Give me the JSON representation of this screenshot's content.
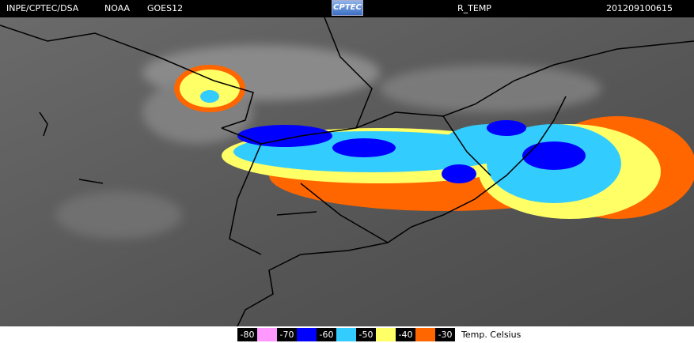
{
  "header": {
    "source": "INPE/CPTEC/DSA",
    "agency": "NOAA",
    "satellite": "GOES12",
    "logo": "CPTEC",
    "product": "R_TEMP",
    "timestamp": "201209100615"
  },
  "legend": {
    "labels": [
      "-80",
      "-70",
      "-60",
      "-50",
      "-40",
      "-30"
    ],
    "colors": [
      "#ff99ff",
      "#0000ff",
      "#33ccff",
      "#ffff66",
      "#ff6600"
    ],
    "unit": "Temp. Celsius"
  }
}
